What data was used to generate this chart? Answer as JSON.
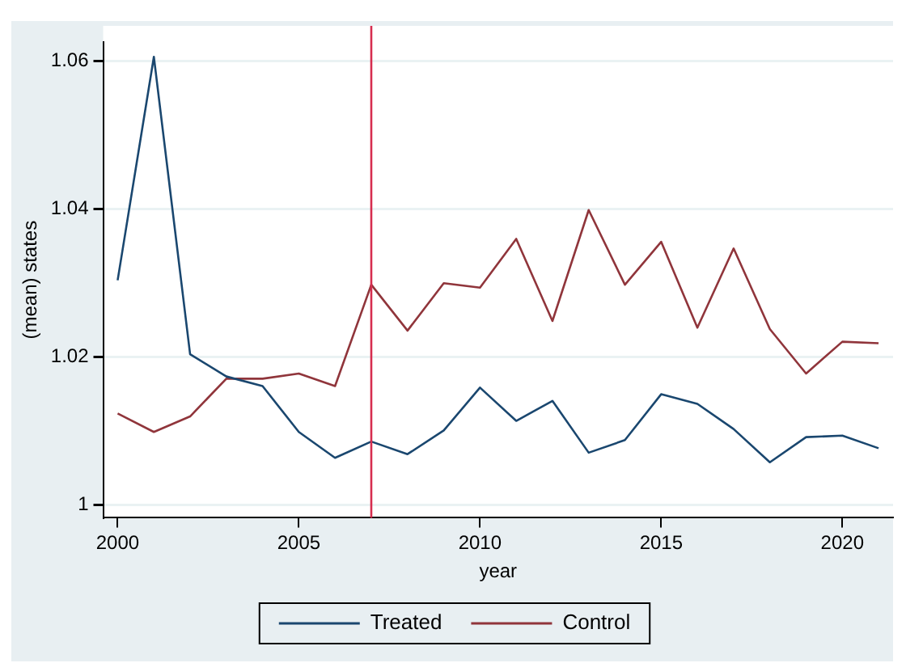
{
  "chart_data": {
    "type": "line",
    "xlabel": "year",
    "ylabel": "(mean) states",
    "x": [
      2000,
      2001,
      2002,
      2003,
      2004,
      2005,
      2006,
      2007,
      2008,
      2009,
      2010,
      2011,
      2012,
      2013,
      2014,
      2015,
      2016,
      2017,
      2018,
      2019,
      2020,
      2021
    ],
    "series": [
      {
        "name": "Treated",
        "color": "#1a476f",
        "values": [
          1.0304,
          1.0606,
          1.0204,
          1.0174,
          1.0161,
          1.0099,
          1.0064,
          1.0086,
          1.0069,
          1.0101,
          1.0159,
          1.0114,
          1.0141,
          1.0071,
          1.0088,
          1.015,
          1.0137,
          1.0103,
          1.0058,
          1.0092,
          1.0094,
          1.0077
        ]
      },
      {
        "name": "Control",
        "color": "#90353b",
        "values": [
          1.0124,
          1.0099,
          1.012,
          1.0171,
          1.0171,
          1.0178,
          1.0161,
          1.0298,
          1.0236,
          1.03,
          1.0294,
          1.036,
          1.0249,
          1.0399,
          1.0298,
          1.0356,
          1.024,
          1.0347,
          1.0238,
          1.0178,
          1.0221,
          1.0219
        ]
      }
    ],
    "xlim": [
      1999.6,
      2021.4
    ],
    "xticks": [
      2000,
      2005,
      2010,
      2015,
      2020
    ],
    "ylim": [
      0.9983,
      1.0626
    ],
    "yticks": [
      1,
      1.02,
      1.04,
      1.06
    ],
    "ref_lines": [
      {
        "axis": "x",
        "value": 2007,
        "color": "#d62d4f"
      }
    ],
    "grid": "y",
    "legend": "bottom",
    "marker": "none",
    "line_style": "solid"
  }
}
